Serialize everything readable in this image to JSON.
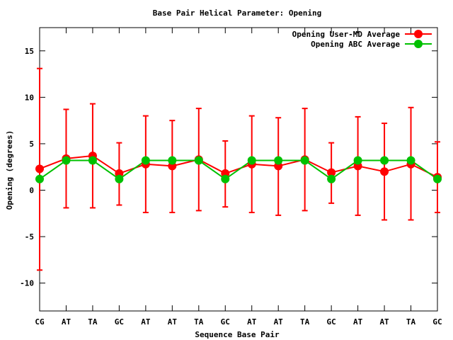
{
  "chart_data": {
    "type": "line",
    "title": "Base Pair Helical Parameter: Opening",
    "xlabel": "Sequence Base Pair",
    "ylabel": "Opening (degrees)",
    "categories": [
      "CG",
      "AT",
      "TA",
      "GC",
      "AT",
      "AT",
      "TA",
      "GC",
      "AT",
      "AT",
      "TA",
      "GC",
      "AT",
      "AT",
      "TA",
      "GC"
    ],
    "ylim": [
      -13,
      17.5
    ],
    "yticks": [
      -10,
      -5,
      0,
      5,
      10,
      15
    ],
    "legend_position": "top-right",
    "grid": false,
    "series": [
      {
        "name": "Opening User-MD Average",
        "color": "#ff0000",
        "values": [
          2.3,
          3.4,
          3.7,
          1.8,
          2.8,
          2.6,
          3.3,
          1.8,
          2.8,
          2.6,
          3.3,
          1.9,
          2.6,
          2.0,
          2.8,
          1.4
        ],
        "error_low": [
          -8.6,
          -1.9,
          -1.9,
          -1.6,
          -2.4,
          -2.4,
          -2.2,
          -1.8,
          -2.4,
          -2.7,
          -2.2,
          -1.4,
          -2.7,
          -3.2,
          -3.2,
          -2.4
        ],
        "error_high": [
          13.1,
          8.7,
          9.3,
          5.1,
          8.0,
          7.5,
          8.8,
          5.3,
          8.0,
          7.8,
          8.8,
          5.1,
          7.9,
          7.2,
          8.9,
          5.2
        ]
      },
      {
        "name": "Opening ABC Average",
        "color": "#00c000",
        "values": [
          1.2,
          3.2,
          3.2,
          1.2,
          3.2,
          3.2,
          3.2,
          1.2,
          3.2,
          3.2,
          3.2,
          1.2,
          3.2,
          3.2,
          3.2,
          1.2
        ]
      }
    ]
  }
}
